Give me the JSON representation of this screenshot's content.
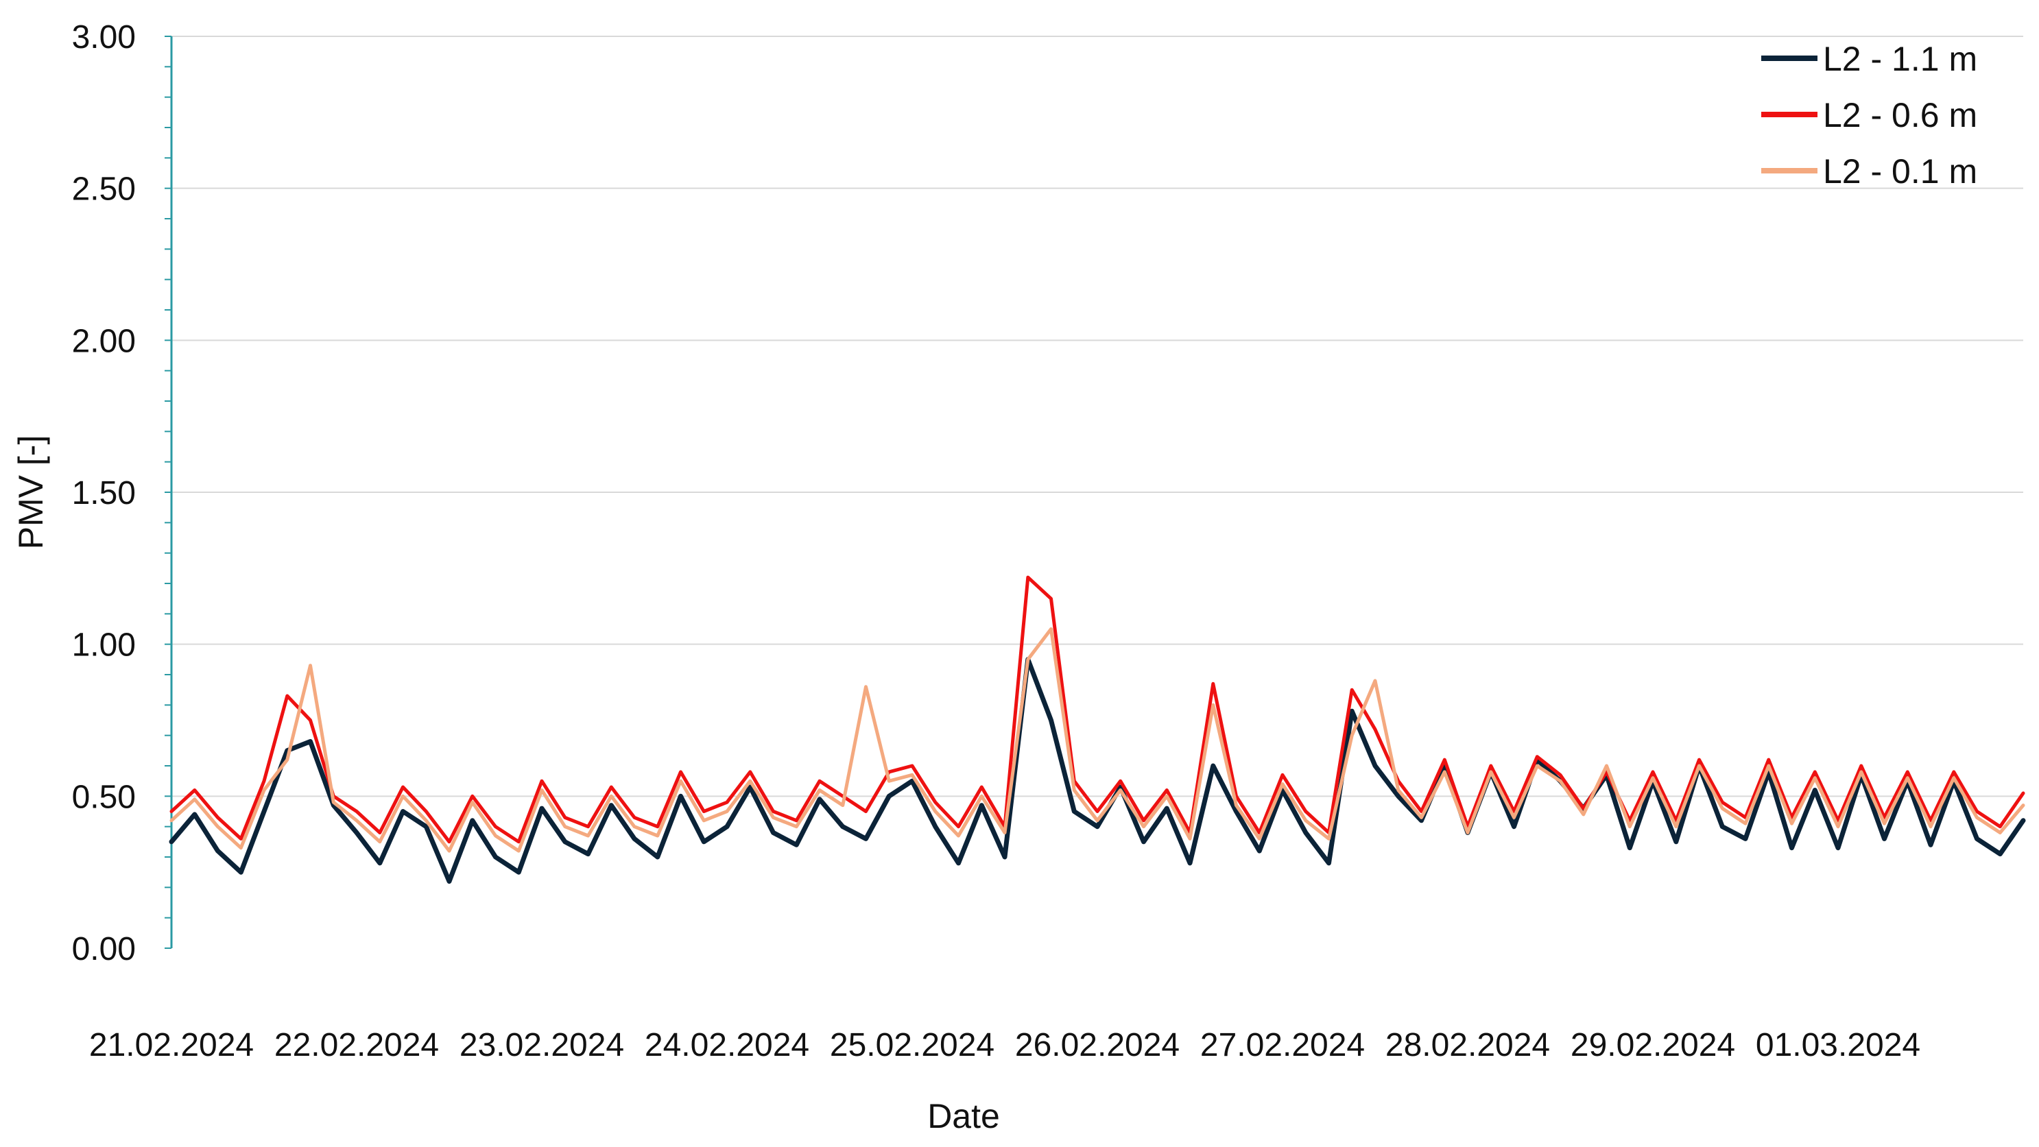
{
  "chart_data": {
    "type": "line",
    "title": "",
    "xlabel": "Date",
    "ylabel": "PMV [-]",
    "ylim": [
      0,
      3
    ],
    "yticks": [
      "0.00",
      "0.50",
      "1.00",
      "1.50",
      "2.00",
      "2.50",
      "3.00"
    ],
    "xlim": [
      "21.02.2024 00:00",
      "02.03.2024 00:00"
    ],
    "x_tick_labels": [
      "21.02.2024",
      "22.02.2024",
      "23.02.2024",
      "24.02.2024",
      "25.02.2024",
      "26.02.2024",
      "27.02.2024",
      "28.02.2024",
      "29.02.2024",
      "01.03.2024"
    ],
    "grid": "horizontal",
    "legend_position": "top-right",
    "series": [
      {
        "name": "L2 - 1.1 m",
        "color": "#0b2338",
        "x": [
          "21.02.2024 00:00",
          "21.02.2024 03:00",
          "21.02.2024 06:00",
          "21.02.2024 09:00",
          "21.02.2024 12:00",
          "21.02.2024 15:00",
          "21.02.2024 18:00",
          "21.02.2024 21:00",
          "22.02.2024 00:00",
          "22.02.2024 03:00",
          "22.02.2024 06:00",
          "22.02.2024 09:00",
          "22.02.2024 12:00",
          "22.02.2024 15:00",
          "22.02.2024 18:00",
          "22.02.2024 21:00",
          "23.02.2024 00:00",
          "23.02.2024 03:00",
          "23.02.2024 06:00",
          "23.02.2024 09:00",
          "23.02.2024 12:00",
          "23.02.2024 15:00",
          "23.02.2024 18:00",
          "23.02.2024 21:00",
          "24.02.2024 00:00",
          "24.02.2024 03:00",
          "24.02.2024 06:00",
          "24.02.2024 09:00",
          "24.02.2024 12:00",
          "24.02.2024 15:00",
          "24.02.2024 18:00",
          "24.02.2024 21:00",
          "25.02.2024 00:00",
          "25.02.2024 03:00",
          "25.02.2024 06:00",
          "25.02.2024 09:00",
          "25.02.2024 12:00",
          "25.02.2024 15:00",
          "25.02.2024 18:00",
          "25.02.2024 21:00",
          "26.02.2024 00:00",
          "26.02.2024 03:00",
          "26.02.2024 06:00",
          "26.02.2024 09:00",
          "26.02.2024 12:00",
          "26.02.2024 15:00",
          "26.02.2024 18:00",
          "26.02.2024 21:00",
          "27.02.2024 00:00",
          "27.02.2024 03:00",
          "27.02.2024 06:00",
          "27.02.2024 09:00",
          "27.02.2024 12:00",
          "27.02.2024 15:00",
          "27.02.2024 18:00",
          "27.02.2024 21:00",
          "28.02.2024 00:00",
          "28.02.2024 03:00",
          "28.02.2024 06:00",
          "28.02.2024 09:00",
          "28.02.2024 12:00",
          "28.02.2024 15:00",
          "28.02.2024 18:00",
          "28.02.2024 21:00",
          "29.02.2024 00:00",
          "29.02.2024 03:00",
          "29.02.2024 06:00",
          "29.02.2024 09:00",
          "29.02.2024 12:00",
          "29.02.2024 15:00",
          "29.02.2024 18:00",
          "29.02.2024 21:00",
          "01.03.2024 00:00",
          "01.03.2024 03:00",
          "01.03.2024 06:00",
          "01.03.2024 09:00",
          "01.03.2024 12:00",
          "01.03.2024 15:00",
          "01.03.2024 18:00",
          "01.03.2024 21:00",
          "02.03.2024 00:00"
        ],
        "values": [
          0.35,
          0.44,
          0.32,
          0.25,
          0.45,
          0.65,
          0.68,
          0.47,
          0.38,
          0.28,
          0.45,
          0.4,
          0.22,
          0.42,
          0.3,
          0.25,
          0.46,
          0.35,
          0.31,
          0.47,
          0.36,
          0.3,
          0.5,
          0.35,
          0.4,
          0.53,
          0.38,
          0.34,
          0.49,
          0.4,
          0.36,
          0.5,
          0.55,
          0.4,
          0.28,
          0.47,
          0.3,
          0.95,
          0.75,
          0.45,
          0.4,
          0.53,
          0.35,
          0.46,
          0.28,
          0.6,
          0.45,
          0.32,
          0.52,
          0.38,
          0.28,
          0.78,
          0.6,
          0.5,
          0.42,
          0.6,
          0.38,
          0.58,
          0.4,
          0.62,
          0.55,
          0.46,
          0.57,
          0.33,
          0.55,
          0.35,
          0.6,
          0.4,
          0.36,
          0.58,
          0.33,
          0.52,
          0.33,
          0.57,
          0.36,
          0.55,
          0.34,
          0.55,
          0.36,
          0.31,
          0.42
        ]
      },
      {
        "name": "L2 - 0.6 m",
        "color": "#ee1111",
        "x": [
          "21.02.2024 00:00",
          "21.02.2024 03:00",
          "21.02.2024 06:00",
          "21.02.2024 09:00",
          "21.02.2024 12:00",
          "21.02.2024 15:00",
          "21.02.2024 18:00",
          "21.02.2024 21:00",
          "22.02.2024 00:00",
          "22.02.2024 03:00",
          "22.02.2024 06:00",
          "22.02.2024 09:00",
          "22.02.2024 12:00",
          "22.02.2024 15:00",
          "22.02.2024 18:00",
          "22.02.2024 21:00",
          "23.02.2024 00:00",
          "23.02.2024 03:00",
          "23.02.2024 06:00",
          "23.02.2024 09:00",
          "23.02.2024 12:00",
          "23.02.2024 15:00",
          "23.02.2024 18:00",
          "23.02.2024 21:00",
          "24.02.2024 00:00",
          "24.02.2024 03:00",
          "24.02.2024 06:00",
          "24.02.2024 09:00",
          "24.02.2024 12:00",
          "24.02.2024 15:00",
          "24.02.2024 18:00",
          "24.02.2024 21:00",
          "25.02.2024 00:00",
          "25.02.2024 03:00",
          "25.02.2024 06:00",
          "25.02.2024 09:00",
          "25.02.2024 12:00",
          "25.02.2024 15:00",
          "25.02.2024 18:00",
          "25.02.2024 21:00",
          "26.02.2024 00:00",
          "26.02.2024 03:00",
          "26.02.2024 06:00",
          "26.02.2024 09:00",
          "26.02.2024 12:00",
          "26.02.2024 15:00",
          "26.02.2024 18:00",
          "26.02.2024 21:00",
          "27.02.2024 00:00",
          "27.02.2024 03:00",
          "27.02.2024 06:00",
          "27.02.2024 09:00",
          "27.02.2024 12:00",
          "27.02.2024 15:00",
          "27.02.2024 18:00",
          "27.02.2024 21:00",
          "28.02.2024 00:00",
          "28.02.2024 03:00",
          "28.02.2024 06:00",
          "28.02.2024 09:00",
          "28.02.2024 12:00",
          "28.02.2024 15:00",
          "28.02.2024 18:00",
          "28.02.2024 21:00",
          "29.02.2024 00:00",
          "29.02.2024 03:00",
          "29.02.2024 06:00",
          "29.02.2024 09:00",
          "29.02.2024 12:00",
          "29.02.2024 15:00",
          "29.02.2024 18:00",
          "29.02.2024 21:00",
          "01.03.2024 00:00",
          "01.03.2024 03:00",
          "01.03.2024 06:00",
          "01.03.2024 09:00",
          "01.03.2024 12:00",
          "01.03.2024 15:00",
          "01.03.2024 18:00",
          "01.03.2024 21:00",
          "02.03.2024 00:00"
        ],
        "values": [
          0.45,
          0.52,
          0.43,
          0.36,
          0.55,
          0.83,
          0.75,
          0.5,
          0.45,
          0.38,
          0.53,
          0.45,
          0.35,
          0.5,
          0.4,
          0.35,
          0.55,
          0.43,
          0.4,
          0.53,
          0.43,
          0.4,
          0.58,
          0.45,
          0.48,
          0.58,
          0.45,
          0.42,
          0.55,
          0.5,
          0.45,
          0.58,
          0.6,
          0.48,
          0.4,
          0.53,
          0.4,
          1.22,
          1.15,
          0.55,
          0.45,
          0.55,
          0.42,
          0.52,
          0.38,
          0.87,
          0.5,
          0.38,
          0.57,
          0.45,
          0.38,
          0.85,
          0.72,
          0.55,
          0.45,
          0.62,
          0.4,
          0.6,
          0.45,
          0.63,
          0.57,
          0.46,
          0.58,
          0.42,
          0.58,
          0.42,
          0.62,
          0.48,
          0.43,
          0.62,
          0.43,
          0.58,
          0.42,
          0.6,
          0.43,
          0.58,
          0.42,
          0.58,
          0.45,
          0.4,
          0.51
        ]
      },
      {
        "name": "L2 - 0.1 m",
        "color": "#f4a97f",
        "x": [
          "21.02.2024 00:00",
          "21.02.2024 03:00",
          "21.02.2024 06:00",
          "21.02.2024 09:00",
          "21.02.2024 12:00",
          "21.02.2024 15:00",
          "21.02.2024 18:00",
          "21.02.2024 21:00",
          "22.02.2024 00:00",
          "22.02.2024 03:00",
          "22.02.2024 06:00",
          "22.02.2024 09:00",
          "22.02.2024 12:00",
          "22.02.2024 15:00",
          "22.02.2024 18:00",
          "22.02.2024 21:00",
          "23.02.2024 00:00",
          "23.02.2024 03:00",
          "23.02.2024 06:00",
          "23.02.2024 09:00",
          "23.02.2024 12:00",
          "23.02.2024 15:00",
          "23.02.2024 18:00",
          "23.02.2024 21:00",
          "24.02.2024 00:00",
          "24.02.2024 03:00",
          "24.02.2024 06:00",
          "24.02.2024 09:00",
          "24.02.2024 12:00",
          "24.02.2024 15:00",
          "24.02.2024 18:00",
          "24.02.2024 21:00",
          "25.02.2024 00:00",
          "25.02.2024 03:00",
          "25.02.2024 06:00",
          "25.02.2024 09:00",
          "25.02.2024 12:00",
          "25.02.2024 15:00",
          "25.02.2024 18:00",
          "25.02.2024 21:00",
          "26.02.2024 00:00",
          "26.02.2024 03:00",
          "26.02.2024 06:00",
          "26.02.2024 09:00",
          "26.02.2024 12:00",
          "26.02.2024 15:00",
          "26.02.2024 18:00",
          "26.02.2024 21:00",
          "27.02.2024 00:00",
          "27.02.2024 03:00",
          "27.02.2024 06:00",
          "27.02.2024 09:00",
          "27.02.2024 12:00",
          "27.02.2024 15:00",
          "27.02.2024 18:00",
          "27.02.2024 21:00",
          "28.02.2024 00:00",
          "28.02.2024 03:00",
          "28.02.2024 06:00",
          "28.02.2024 09:00",
          "28.02.2024 12:00",
          "28.02.2024 15:00",
          "28.02.2024 18:00",
          "28.02.2024 21:00",
          "29.02.2024 00:00",
          "29.02.2024 03:00",
          "29.02.2024 06:00",
          "29.02.2024 09:00",
          "29.02.2024 12:00",
          "29.02.2024 15:00",
          "29.02.2024 18:00",
          "29.02.2024 21:00",
          "01.03.2024 00:00",
          "01.03.2024 03:00",
          "01.03.2024 06:00",
          "01.03.2024 09:00",
          "01.03.2024 12:00",
          "01.03.2024 15:00",
          "01.03.2024 18:00",
          "01.03.2024 21:00",
          "02.03.2024 00:00"
        ],
        "values": [
          0.42,
          0.49,
          0.4,
          0.33,
          0.52,
          0.62,
          0.93,
          0.48,
          0.42,
          0.35,
          0.5,
          0.42,
          0.32,
          0.48,
          0.37,
          0.32,
          0.52,
          0.4,
          0.37,
          0.5,
          0.4,
          0.37,
          0.55,
          0.42,
          0.45,
          0.55,
          0.43,
          0.4,
          0.52,
          0.47,
          0.86,
          0.55,
          0.57,
          0.45,
          0.37,
          0.5,
          0.38,
          0.95,
          1.05,
          0.52,
          0.42,
          0.52,
          0.4,
          0.5,
          0.36,
          0.8,
          0.47,
          0.36,
          0.54,
          0.42,
          0.36,
          0.7,
          0.88,
          0.52,
          0.43,
          0.58,
          0.38,
          0.58,
          0.43,
          0.6,
          0.55,
          0.44,
          0.6,
          0.4,
          0.56,
          0.4,
          0.6,
          0.46,
          0.41,
          0.6,
          0.41,
          0.56,
          0.4,
          0.58,
          0.41,
          0.56,
          0.4,
          0.56,
          0.43,
          0.38,
          0.47
        ]
      }
    ]
  }
}
